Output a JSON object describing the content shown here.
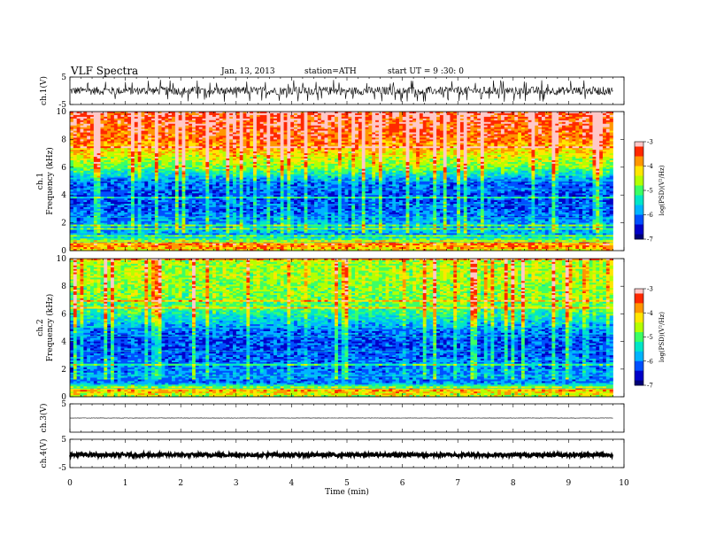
{
  "header": {
    "title": "VLF Spectra",
    "date": "Jan. 13, 2013",
    "station": "station=ATH",
    "start": "start UT =  9 :30: 0"
  },
  "chart_data": [
    {
      "type": "line",
      "panel": "ch1-waveform",
      "ylabel": "ch.1(V)",
      "ylim": [
        -5,
        5
      ],
      "yticks": [
        "5",
        "-5"
      ],
      "description_values": {
        "baseline": 0.0,
        "amplitude": 1.5,
        "spike_max": 4.0
      }
    },
    {
      "type": "heatmap",
      "panel": "ch1-spectrogram",
      "ylabel_top": "ch.1",
      "ylabel": "Frequency  (kHz)",
      "ylim": [
        0,
        10
      ],
      "yticks": [
        "0",
        "2",
        "4",
        "6",
        "8",
        "10"
      ],
      "colorbar": {
        "label": "log(PSD)(V²/Hz)",
        "range": [
          -7,
          -3
        ],
        "ticks": [
          "-3",
          "-4",
          "-5",
          "-6",
          "-7"
        ]
      },
      "profile_freq_khz": [
        0,
        0.5,
        1,
        2,
        3,
        4,
        5,
        6,
        7,
        8,
        9,
        10
      ],
      "profile_logpsd": [
        -4.2,
        -3.6,
        -5.8,
        -6.0,
        -6.3,
        -6.4,
        -6.2,
        -5.0,
        -4.4,
        -3.8,
        -3.6,
        -3.5
      ]
    },
    {
      "type": "heatmap",
      "panel": "ch2-spectrogram",
      "ylabel_top": "ch.2",
      "ylabel": "Frequency  (kHz)",
      "ylim": [
        0,
        10
      ],
      "yticks": [
        "0",
        "2",
        "4",
        "6",
        "8",
        "10"
      ],
      "colorbar": {
        "label": "log(PSD)(V²/Hz)",
        "range": [
          -7,
          -3
        ],
        "ticks": [
          "-3",
          "-4",
          "-5",
          "-6",
          "-7"
        ]
      },
      "profile_freq_khz": [
        0,
        0.5,
        1,
        2,
        3,
        4,
        5,
        6,
        7,
        8,
        9,
        10
      ],
      "profile_logpsd": [
        -4.6,
        -3.9,
        -6.0,
        -6.1,
        -6.3,
        -6.4,
        -6.1,
        -5.4,
        -5.0,
        -4.9,
        -4.8,
        -4.8
      ]
    },
    {
      "type": "line",
      "panel": "ch3-waveform",
      "ylabel": "ch.3(V)",
      "ylim": [
        -5,
        5
      ],
      "yticks": [
        "5"
      ],
      "description_values": {
        "baseline": 0.0,
        "amplitude": 0.05
      }
    },
    {
      "type": "line",
      "panel": "ch4-waveform",
      "ylabel": "ch.4(V)",
      "ylim": [
        -5,
        5
      ],
      "yticks": [
        "5",
        "-5"
      ],
      "description_values": {
        "baseline": -0.5,
        "amplitude": 0.6
      }
    }
  ],
  "xaxis": {
    "label": "Time  (min)",
    "xlim": [
      0,
      10
    ],
    "ticks": [
      "0",
      "1",
      "2",
      "3",
      "4",
      "5",
      "6",
      "7",
      "8",
      "9",
      "10"
    ],
    "data_end": 9.8
  },
  "colors": {
    "colormap": [
      "#000078",
      "#0000c8",
      "#0050ff",
      "#00b4ff",
      "#00e6c8",
      "#3cff64",
      "#b4ff00",
      "#ffe600",
      "#ff9600",
      "#ff2800",
      "#ffc8c8"
    ]
  }
}
